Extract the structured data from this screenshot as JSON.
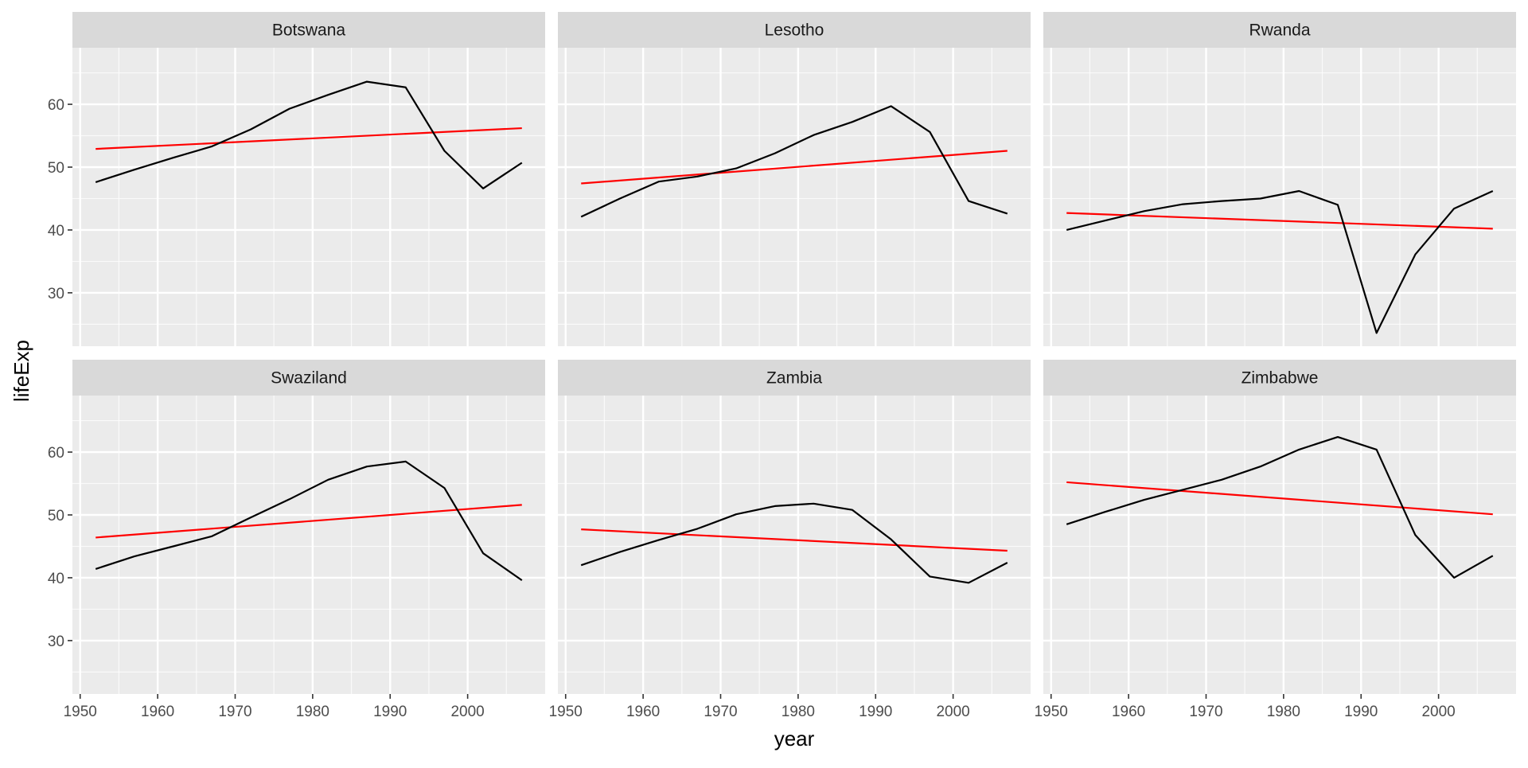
{
  "chart_data": {
    "type": "line",
    "xlabel": "year",
    "ylabel": "lifeExp",
    "xlim": [
      1949,
      2010
    ],
    "ylim": [
      21.5,
      69
    ],
    "x_ticks": [
      1950,
      1960,
      1970,
      1980,
      1990,
      2000
    ],
    "y_ticks": [
      30,
      40,
      50,
      60
    ],
    "grid": true,
    "layout": "facet grid, 2 rows x 3 columns, shared axes",
    "colors": {
      "observed": "#000000",
      "fit": "#ff0000",
      "panel_bg": "#ebebeb",
      "strip_bg": "#d9d9d9",
      "grid": "#ffffff"
    },
    "years": [
      1952,
      1957,
      1962,
      1967,
      1972,
      1977,
      1982,
      1987,
      1992,
      1997,
      2002,
      2007
    ],
    "panels": [
      {
        "country": "Botswana",
        "lifeExp": [
          47.6,
          49.6,
          51.5,
          53.3,
          56.0,
          59.3,
          61.5,
          63.6,
          62.7,
          52.6,
          46.6,
          50.7
        ],
        "fit": [
          52.9,
          56.2
        ]
      },
      {
        "country": "Lesotho",
        "lifeExp": [
          42.1,
          45.0,
          47.7,
          48.5,
          49.8,
          52.2,
          55.1,
          57.2,
          59.7,
          55.6,
          44.6,
          42.6
        ],
        "fit": [
          47.4,
          52.6
        ]
      },
      {
        "country": "Rwanda",
        "lifeExp": [
          40.0,
          41.5,
          43.0,
          44.1,
          44.6,
          45.0,
          46.2,
          44.0,
          23.6,
          36.1,
          43.4,
          46.2
        ],
        "fit": [
          42.7,
          40.2
        ]
      },
      {
        "country": "Swaziland",
        "lifeExp": [
          41.4,
          43.4,
          45.0,
          46.6,
          49.6,
          52.5,
          55.6,
          57.7,
          58.5,
          54.3,
          43.9,
          39.6
        ],
        "fit": [
          46.4,
          51.6
        ]
      },
      {
        "country": "Zambia",
        "lifeExp": [
          42.0,
          44.1,
          46.0,
          47.8,
          50.1,
          51.4,
          51.8,
          50.8,
          46.1,
          40.2,
          39.2,
          42.4
        ],
        "fit": [
          47.7,
          44.3
        ]
      },
      {
        "country": "Zimbabwe",
        "lifeExp": [
          48.5,
          50.5,
          52.4,
          54.0,
          55.6,
          57.7,
          60.4,
          62.4,
          60.4,
          46.8,
          40.0,
          43.5
        ],
        "fit": [
          55.2,
          50.1
        ]
      }
    ]
  }
}
